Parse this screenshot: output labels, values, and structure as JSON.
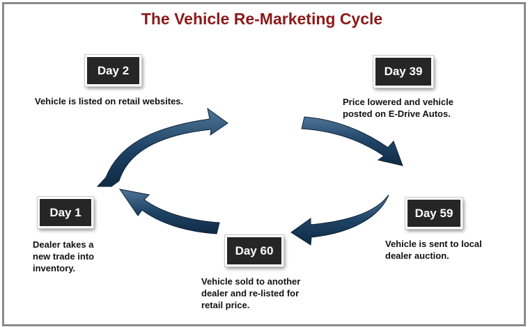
{
  "title": "The Vehicle Re-Marketing Cycle",
  "colors": {
    "title": "#8b1a1a",
    "arrow": "#1f4466",
    "day_box": "#262626"
  },
  "stages": [
    {
      "day": "Day 1",
      "description": "Dealer takes a\nnew trade into\ninventory."
    },
    {
      "day": "Day 2",
      "description": "Vehicle is listed on retail websites."
    },
    {
      "day": "Day 39",
      "description": "Price lowered and vehicle\nposted on E-Drive Autos."
    },
    {
      "day": "Day 59",
      "description": "Vehicle is sent to local\ndealer auction."
    },
    {
      "day": "Day 60",
      "description": "Vehicle sold to another\ndealer and re-listed for\nretail price."
    }
  ]
}
